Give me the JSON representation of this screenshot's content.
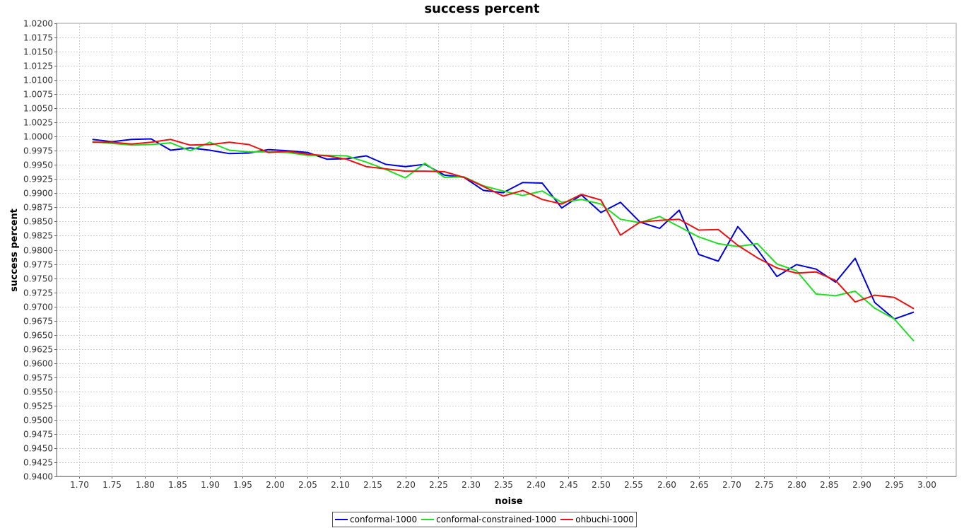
{
  "chart_data": {
    "type": "line",
    "title": "success percent",
    "xlabel": "noise",
    "ylabel": "success percent",
    "xlim": [
      1.665,
      3.045
    ],
    "ylim": [
      0.94,
      1.02
    ],
    "x_ticks": [
      "1.70",
      "1.75",
      "1.80",
      "1.85",
      "1.90",
      "1.95",
      "2.00",
      "2.05",
      "2.10",
      "2.15",
      "2.20",
      "2.25",
      "2.30",
      "2.35",
      "2.40",
      "2.45",
      "2.50",
      "2.55",
      "2.60",
      "2.65",
      "2.70",
      "2.75",
      "2.80",
      "2.85",
      "2.90",
      "2.95",
      "3.00"
    ],
    "y_ticks": [
      "0.9400",
      "0.9425",
      "0.9450",
      "0.9475",
      "0.9500",
      "0.9525",
      "0.9550",
      "0.9575",
      "0.9600",
      "0.9625",
      "0.9650",
      "0.9675",
      "0.9700",
      "0.9725",
      "0.9750",
      "0.9775",
      "0.9800",
      "0.9825",
      "0.9850",
      "0.9875",
      "0.9900",
      "0.9925",
      "0.9950",
      "0.9975",
      "1.0000",
      "1.0025",
      "1.0050",
      "1.0075",
      "1.0100",
      "1.0125",
      "1.0150",
      "1.0175",
      "1.0200"
    ],
    "grid": true,
    "legend_position": "bottom-center",
    "x": [
      1.72,
      1.75,
      1.78,
      1.81,
      1.84,
      1.87,
      1.9,
      1.93,
      1.96,
      1.99,
      2.02,
      2.05,
      2.08,
      2.11,
      2.14,
      2.17,
      2.2,
      2.23,
      2.26,
      2.29,
      2.32,
      2.35,
      2.38,
      2.41,
      2.44,
      2.47,
      2.5,
      2.53,
      2.56,
      2.59,
      2.62,
      2.65,
      2.68,
      2.71,
      2.74,
      2.77,
      2.8,
      2.83,
      2.86,
      2.89,
      2.92,
      2.95,
      2.98
    ],
    "series": [
      {
        "name": "conformal-1000",
        "color": "#0000dd",
        "values": [
          0.9995,
          0.9991,
          0.9995,
          0.9996,
          0.9976,
          0.998,
          0.9976,
          0.997,
          0.9971,
          0.9977,
          0.9975,
          0.9972,
          0.996,
          0.9961,
          0.9966,
          0.9951,
          0.9947,
          0.9951,
          0.9932,
          0.9928,
          0.9905,
          0.9901,
          0.9919,
          0.9918,
          0.9874,
          0.9897,
          0.9866,
          0.9884,
          0.9849,
          0.9838,
          0.987,
          0.9792,
          0.978,
          0.9841,
          0.9801,
          0.9753,
          0.9774,
          0.9766,
          0.9743,
          0.9785,
          0.9707,
          0.9678,
          0.969
        ]
      },
      {
        "name": "conformal-constrained-1000",
        "color": "#22dd22",
        "values": [
          0.9991,
          0.9988,
          0.9985,
          0.9986,
          0.9989,
          0.9975,
          0.999,
          0.9976,
          0.9973,
          0.9973,
          0.9972,
          0.9967,
          0.9967,
          0.9966,
          0.9955,
          0.9942,
          0.9927,
          0.9953,
          0.9928,
          0.9929,
          0.9913,
          0.9904,
          0.9896,
          0.9904,
          0.9884,
          0.9889,
          0.9881,
          0.9854,
          0.9848,
          0.9859,
          0.9841,
          0.9823,
          0.9811,
          0.9806,
          0.9811,
          0.9775,
          0.9763,
          0.9722,
          0.9719,
          0.9727,
          0.9697,
          0.9678,
          0.9639
        ]
      },
      {
        "name": "ohbuchi-1000",
        "color": "#ee1111",
        "values": [
          0.999,
          0.999,
          0.9987,
          0.999,
          0.9995,
          0.9985,
          0.9986,
          0.999,
          0.9986,
          0.9972,
          0.9974,
          0.9969,
          0.9966,
          0.996,
          0.9947,
          0.9943,
          0.9939,
          0.9939,
          0.9938,
          0.9928,
          0.9912,
          0.9895,
          0.9905,
          0.9889,
          0.9881,
          0.9898,
          0.9888,
          0.9826,
          0.9849,
          0.9852,
          0.9854,
          0.9835,
          0.9836,
          0.9808,
          0.9786,
          0.9768,
          0.9759,
          0.9761,
          0.9746,
          0.9708,
          0.972,
          0.9716,
          0.9696
        ]
      }
    ]
  }
}
